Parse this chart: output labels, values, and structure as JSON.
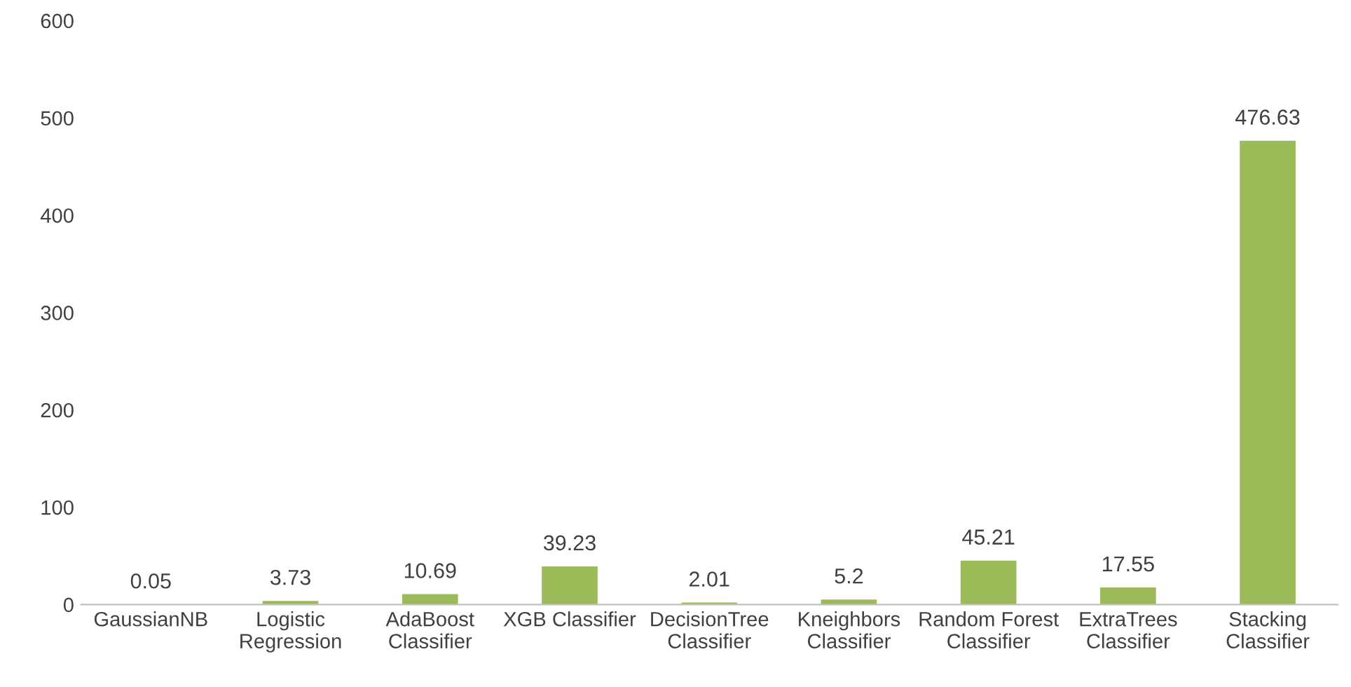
{
  "chart_data": {
    "type": "bar",
    "categories": [
      "GaussianNB",
      "Logistic\nRegression",
      "AdaBoost\nClassifier",
      "XGB Classifier",
      "DecisionTree\nClassifier",
      "Kneighbors\nClassifier",
      "Random Forest\nClassifier",
      "ExtraTrees\nClassifier",
      "Stacking\nClassifier"
    ],
    "values": [
      0.05,
      3.73,
      10.69,
      39.23,
      2.01,
      5.2,
      45.21,
      17.55,
      476.63
    ],
    "color": "#9bbb59",
    "ylim": [
      0,
      600
    ],
    "yticks": [
      0,
      100,
      200,
      300,
      400,
      500,
      600
    ],
    "grid": false,
    "data_labels": true
  }
}
